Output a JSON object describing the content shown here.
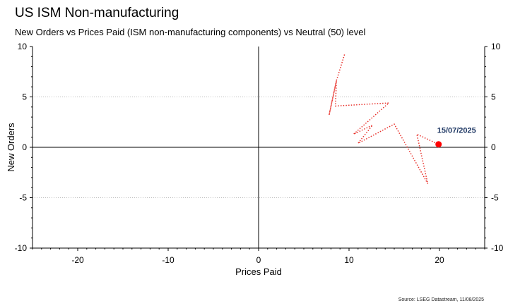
{
  "title": "US ISM Non-manufacturing",
  "subtitle": "New Orders vs Prices Paid (ISM non-manufacturing components) vs Neutral (50) level",
  "source": "Source: LSEG Datastream, 11/08/2025",
  "chart_data": {
    "type": "scatter",
    "xlabel": "Prices Paid",
    "ylabel": "New Orders",
    "xlim": [
      -25,
      25
    ],
    "ylim": [
      -10,
      10
    ],
    "xticks": [
      -20,
      -10,
      0,
      10,
      20
    ],
    "yticks": [
      -10,
      -5,
      0,
      5,
      10
    ],
    "grid": "horizontal dotted at ±5",
    "colors": {
      "path": "#e8302a",
      "marker": "#ff0000",
      "annotation": "#1f3864",
      "axis": "#000000",
      "grid": "#bbbbbb"
    },
    "series": [
      {
        "points": [
          {
            "x": 9.5,
            "y": 9.2
          },
          {
            "x": 8.6,
            "y": 6.6
          },
          {
            "x": 7.8,
            "y": 3.2
          },
          {
            "x": 8.6,
            "y": 6.6
          },
          {
            "x": 8.5,
            "y": 4.1
          },
          {
            "x": 14.4,
            "y": 4.4
          },
          {
            "x": 10.5,
            "y": 1.3
          },
          {
            "x": 12.6,
            "y": 2.2
          },
          {
            "x": 11.0,
            "y": 0.4
          },
          {
            "x": 15.0,
            "y": 2.3
          },
          {
            "x": 18.7,
            "y": -3.6
          },
          {
            "x": 17.5,
            "y": 1.3
          },
          {
            "x": 19.9,
            "y": 0.3
          }
        ]
      }
    ],
    "annotation": {
      "text": "15/07/2025",
      "x": 19.9,
      "y": 0.3
    }
  }
}
